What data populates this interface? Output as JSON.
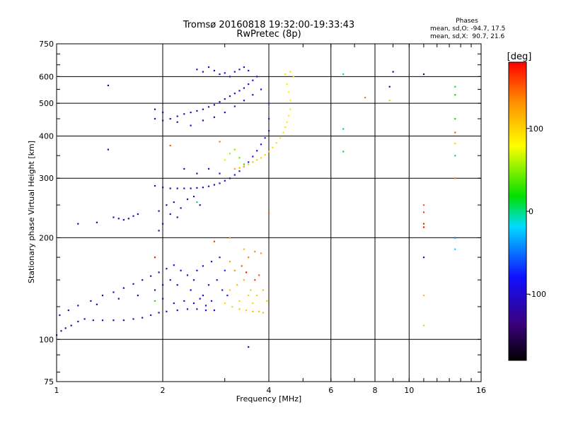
{
  "chart_data": {
    "type": "scatter",
    "title": "Tromsø 20160818 19:32:00-19:33:43",
    "subtitle": "RwPretec (8p)",
    "xlabel": "Frequency [MHz]",
    "ylabel": "Stationary phase Virtual Height [km]",
    "xscale": "log",
    "yscale": "log",
    "xlim": [
      1,
      16
    ],
    "ylim": [
      75,
      750
    ],
    "x_ticks": [
      1,
      2,
      4,
      6,
      8,
      10,
      16
    ],
    "x_tick_labels": [
      "1",
      "2",
      "4",
      "6",
      "8",
      "10",
      "16"
    ],
    "y_ticks": [
      75,
      100,
      200,
      300,
      400,
      500,
      600,
      750
    ],
    "y_tick_labels": [
      "75",
      "100",
      "200",
      "300",
      "400",
      "500",
      "600",
      "750"
    ],
    "grid": true,
    "phase_stats": {
      "title": "Phases",
      "line_o": "mean, sd,O: -94.7, 17.5",
      "line_x": "mean, sd,X:  90.7, 21.6"
    },
    "colorbar": {
      "unit_label": "[deg]",
      "range": [
        -180,
        180
      ],
      "ticks": [
        100,
        0,
        -100
      ],
      "tick_labels": [
        "100",
        "0",
        "-100"
      ]
    },
    "points": [
      [
        1.0,
        103,
        -125
      ],
      [
        1.03,
        106,
        -120
      ],
      [
        1.06,
        108,
        -118
      ],
      [
        1.1,
        110,
        -120
      ],
      [
        1.15,
        113,
        -115
      ],
      [
        1.2,
        115,
        -120
      ],
      [
        1.27,
        114,
        -118
      ],
      [
        1.35,
        114,
        -115
      ],
      [
        1.45,
        114,
        -120
      ],
      [
        1.55,
        114,
        -118
      ],
      [
        1.65,
        115,
        -120
      ],
      [
        1.75,
        116,
        -115
      ],
      [
        1.85,
        118,
        -112
      ],
      [
        1.95,
        120,
        -110
      ],
      [
        2.05,
        121,
        -112
      ],
      [
        2.2,
        122,
        -105
      ],
      [
        2.35,
        123,
        -100
      ],
      [
        2.5,
        123,
        -95
      ],
      [
        2.65,
        122,
        -95
      ],
      [
        2.8,
        122,
        -90
      ],
      [
        1.02,
        118,
        -125
      ],
      [
        1.08,
        122,
        -120
      ],
      [
        1.15,
        126,
        -118
      ],
      [
        1.25,
        130,
        -120
      ],
      [
        1.35,
        135,
        -118
      ],
      [
        1.45,
        138,
        -115
      ],
      [
        1.55,
        142,
        -115
      ],
      [
        1.65,
        146,
        -112
      ],
      [
        1.75,
        150,
        -110
      ],
      [
        1.85,
        154,
        -108
      ],
      [
        1.95,
        158,
        -110
      ],
      [
        2.05,
        162,
        -108
      ],
      [
        2.15,
        166,
        -105
      ],
      [
        2.25,
        160,
        -100
      ],
      [
        2.35,
        155,
        -100
      ],
      [
        2.45,
        150,
        -95
      ],
      [
        1.3,
        127,
        -115
      ],
      [
        1.5,
        132,
        -118
      ],
      [
        1.7,
        135,
        -112
      ],
      [
        1.9,
        140,
        -110
      ],
      [
        2.0,
        145,
        -108
      ],
      [
        2.1,
        150,
        -105
      ],
      [
        2.2,
        145,
        -105
      ],
      [
        2.4,
        140,
        -100
      ],
      [
        2.6,
        135,
        -95
      ],
      [
        2.7,
        145,
        -90
      ],
      [
        2.85,
        150,
        -85
      ],
      [
        2.95,
        140,
        -80
      ],
      [
        3.05,
        135,
        -75
      ],
      [
        2.5,
        160,
        -92
      ],
      [
        2.6,
        165,
        -88
      ],
      [
        2.75,
        170,
        -85
      ],
      [
        2.9,
        175,
        -80
      ],
      [
        3.0,
        160,
        -70
      ],
      [
        2.3,
        130,
        -100
      ],
      [
        2.45,
        128,
        -95
      ],
      [
        2.55,
        132,
        -90
      ],
      [
        2.65,
        126,
        -88
      ],
      [
        2.75,
        130,
        -85
      ],
      [
        2.15,
        128,
        -100
      ],
      [
        2.0,
        132,
        -108
      ],
      [
        3.0,
        128,
        95
      ],
      [
        3.15,
        125,
        100
      ],
      [
        3.3,
        123,
        105
      ],
      [
        3.45,
        122,
        105
      ],
      [
        3.6,
        121,
        110
      ],
      [
        3.75,
        121,
        110
      ],
      [
        3.85,
        120,
        108
      ],
      [
        3.1,
        140,
        100
      ],
      [
        3.25,
        145,
        110
      ],
      [
        3.4,
        150,
        115
      ],
      [
        3.55,
        140,
        105
      ],
      [
        3.7,
        135,
        100
      ],
      [
        3.2,
        160,
        130
      ],
      [
        3.35,
        165,
        150
      ],
      [
        3.5,
        175,
        140
      ],
      [
        3.65,
        182,
        130
      ],
      [
        3.8,
        180,
        125
      ],
      [
        3.3,
        130,
        95
      ],
      [
        3.5,
        135,
        100
      ],
      [
        3.65,
        150,
        160
      ],
      [
        3.45,
        158,
        170
      ],
      [
        3.75,
        155,
        150
      ],
      [
        3.85,
        140,
        110
      ],
      [
        3.95,
        130,
        105
      ],
      [
        3.6,
        128,
        100
      ],
      [
        3.1,
        170,
        120
      ],
      [
        3.4,
        185,
        110
      ],
      [
        1.9,
        450,
        -115
      ],
      [
        2.0,
        445,
        -118
      ],
      [
        2.1,
        450,
        -115
      ],
      [
        2.2,
        458,
        -110
      ],
      [
        2.3,
        465,
        -110
      ],
      [
        2.4,
        470,
        -105
      ],
      [
        2.5,
        475,
        -108
      ],
      [
        2.6,
        480,
        -105
      ],
      [
        2.7,
        488,
        -100
      ],
      [
        2.8,
        495,
        -100
      ],
      [
        2.9,
        505,
        -100
      ],
      [
        3.0,
        515,
        -98
      ],
      [
        3.1,
        525,
        -95
      ],
      [
        3.2,
        535,
        -95
      ],
      [
        3.3,
        545,
        -92
      ],
      [
        3.4,
        555,
        -90
      ],
      [
        3.5,
        570,
        -90
      ],
      [
        3.6,
        585,
        -88
      ],
      [
        3.7,
        600,
        -88
      ],
      [
        1.9,
        480,
        -118
      ],
      [
        2.0,
        470,
        -115
      ],
      [
        2.2,
        440,
        -112
      ],
      [
        2.4,
        430,
        -110
      ],
      [
        2.6,
        445,
        -108
      ],
      [
        2.8,
        455,
        -105
      ],
      [
        3.0,
        470,
        -102
      ],
      [
        3.2,
        490,
        -100
      ],
      [
        3.4,
        510,
        -98
      ],
      [
        3.6,
        530,
        -95
      ],
      [
        3.8,
        550,
        -95
      ],
      [
        2.5,
        630,
        -100
      ],
      [
        2.6,
        620,
        -100
      ],
      [
        2.7,
        640,
        -95
      ],
      [
        2.8,
        625,
        -90
      ],
      [
        2.9,
        610,
        -92
      ],
      [
        3.0,
        615,
        -90
      ],
      [
        3.1,
        600,
        -88
      ],
      [
        3.2,
        620,
        -92
      ],
      [
        3.3,
        630,
        -90
      ],
      [
        3.4,
        640,
        -88
      ],
      [
        3.5,
        625,
        -90
      ],
      [
        1.9,
        285,
        -120
      ],
      [
        2.0,
        282,
        -118
      ],
      [
        2.1,
        280,
        -115
      ],
      [
        2.2,
        280,
        -115
      ],
      [
        2.3,
        280,
        -112
      ],
      [
        2.4,
        280,
        -110
      ],
      [
        2.5,
        281,
        -108
      ],
      [
        2.6,
        282,
        -105
      ],
      [
        2.7,
        284,
        -100
      ],
      [
        2.8,
        287,
        -100
      ],
      [
        2.9,
        290,
        -98
      ],
      [
        3.0,
        295,
        -95
      ],
      [
        3.1,
        300,
        -95
      ],
      [
        3.2,
        307,
        -92
      ],
      [
        3.3,
        315,
        -90
      ],
      [
        3.4,
        325,
        -90
      ],
      [
        3.5,
        335,
        -85
      ],
      [
        3.6,
        348,
        -85
      ],
      [
        3.7,
        362,
        -80
      ],
      [
        3.8,
        378,
        -80
      ],
      [
        3.9,
        395,
        -78
      ],
      [
        4.0,
        415,
        -75
      ],
      [
        4.0,
        450,
        -75
      ],
      [
        4.0,
        500,
        -70
      ],
      [
        1.95,
        240,
        -118
      ],
      [
        2.05,
        250,
        -115
      ],
      [
        2.15,
        255,
        -112
      ],
      [
        2.25,
        245,
        -110
      ],
      [
        2.35,
        260,
        -108
      ],
      [
        2.45,
        265,
        -105
      ],
      [
        2.55,
        250,
        -100
      ],
      [
        2.2,
        230,
        -115
      ],
      [
        2.0,
        220,
        -118
      ],
      [
        1.95,
        210,
        -120
      ],
      [
        2.1,
        235,
        -115
      ],
      [
        2.3,
        320,
        -110
      ],
      [
        2.5,
        310,
        -105
      ],
      [
        2.7,
        320,
        -100
      ],
      [
        2.9,
        310,
        -95
      ],
      [
        1.45,
        230,
        -120
      ],
      [
        1.5,
        228,
        -118
      ],
      [
        1.55,
        226,
        -118
      ],
      [
        1.6,
        228,
        -115
      ],
      [
        1.65,
        232,
        -115
      ],
      [
        1.7,
        235,
        -112
      ],
      [
        1.3,
        222,
        -120
      ],
      [
        3.2,
        320,
        120
      ],
      [
        3.3,
        322,
        115
      ],
      [
        3.4,
        325,
        110
      ],
      [
        3.5,
        330,
        105
      ],
      [
        3.6,
        335,
        105
      ],
      [
        3.7,
        340,
        102
      ],
      [
        3.8,
        345,
        100
      ],
      [
        3.9,
        352,
        100
      ],
      [
        4.0,
        360,
        98
      ],
      [
        4.1,
        370,
        95
      ],
      [
        4.2,
        382,
        95
      ],
      [
        4.3,
        395,
        92
      ],
      [
        4.4,
        410,
        92
      ],
      [
        4.45,
        425,
        90
      ],
      [
        4.5,
        440,
        90
      ],
      [
        4.55,
        460,
        88
      ],
      [
        4.6,
        480,
        88
      ],
      [
        4.6,
        510,
        85
      ],
      [
        4.55,
        540,
        85
      ],
      [
        4.5,
        570,
        88
      ],
      [
        4.45,
        610,
        90
      ],
      [
        4.6,
        620,
        95
      ],
      [
        4.7,
        600,
        100
      ],
      [
        3.0,
        340,
        70
      ],
      [
        3.1,
        355,
        60
      ],
      [
        3.2,
        365,
        50
      ],
      [
        3.3,
        345,
        40
      ],
      [
        3.4,
        330,
        30
      ],
      [
        6.5,
        610,
        0
      ],
      [
        6.5,
        420,
        5
      ],
      [
        6.5,
        360,
        10
      ],
      [
        7.5,
        520,
        140
      ],
      [
        9.0,
        620,
        -130
      ],
      [
        8.8,
        560,
        -110
      ],
      [
        8.8,
        510,
        60
      ],
      [
        11.0,
        610,
        -140
      ],
      [
        11.0,
        250,
        150
      ],
      [
        11.0,
        238,
        160
      ],
      [
        11.0,
        220,
        170
      ],
      [
        11.0,
        215,
        175
      ],
      [
        11.0,
        175,
        -120
      ],
      [
        11.0,
        135,
        110
      ],
      [
        11.0,
        110,
        60
      ],
      [
        13.5,
        560,
        10
      ],
      [
        13.5,
        530,
        20
      ],
      [
        13.5,
        450,
        15
      ],
      [
        13.5,
        410,
        150
      ],
      [
        13.5,
        380,
        100
      ],
      [
        13.5,
        300,
        140
      ],
      [
        13.5,
        200,
        -50
      ],
      [
        13.5,
        185,
        -20
      ],
      [
        13.5,
        350,
        0
      ],
      [
        1.4,
        565,
        -120
      ],
      [
        1.4,
        365,
        -120
      ],
      [
        1.15,
        220,
        -120
      ],
      [
        1.9,
        130,
        30
      ],
      [
        1.9,
        175,
        170
      ],
      [
        2.5,
        255,
        0
      ],
      [
        2.8,
        195,
        160
      ],
      [
        3.1,
        200,
        130
      ],
      [
        3.5,
        95,
        -110
      ],
      [
        4.0,
        237,
        150
      ],
      [
        2.1,
        375,
        150
      ],
      [
        2.9,
        385,
        140
      ]
    ]
  }
}
